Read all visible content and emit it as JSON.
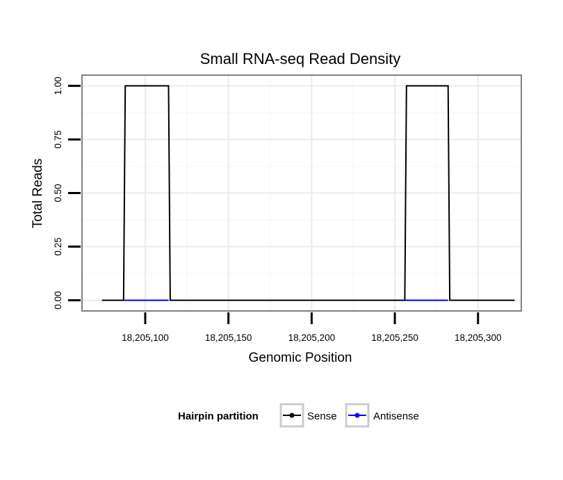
{
  "chart_data": {
    "type": "line",
    "title": "Small RNA-seq Read Density",
    "xlabel": "Genomic Position",
    "ylabel": "Total Reads",
    "xlim": [
      18205062,
      18205326
    ],
    "ylim": [
      -0.05,
      1.05
    ],
    "x_ticks": [
      18205100,
      18205150,
      18205200,
      18205250,
      18205300
    ],
    "x_tick_labels": [
      "18,205,100",
      "18,205,150",
      "18,205,200",
      "18,205,250",
      "18,205,300"
    ],
    "y_ticks": [
      0,
      0.25,
      0.5,
      0.75,
      1
    ],
    "y_tick_labels": [
      "0.00",
      "0.25",
      "0.50",
      "0.75",
      "1.00"
    ],
    "grid": true,
    "legend": {
      "title": "Hairpin partition",
      "position": "bottom",
      "entries": [
        "Sense",
        "Antisense"
      ]
    },
    "series": [
      {
        "name": "Sense",
        "color": "#000000",
        "x": [
          18205074,
          18205087,
          18205088,
          18205114,
          18205115,
          18205256,
          18205257,
          18205282,
          18205283,
          18205322
        ],
        "y": [
          0,
          0,
          1,
          1,
          0,
          0,
          1,
          1,
          0,
          0
        ]
      },
      {
        "name": "Antisense",
        "color": "#0000ff",
        "x": [
          18205087,
          18205114,
          18205256,
          18205282
        ],
        "y": [
          0,
          0,
          0,
          0
        ]
      }
    ]
  }
}
